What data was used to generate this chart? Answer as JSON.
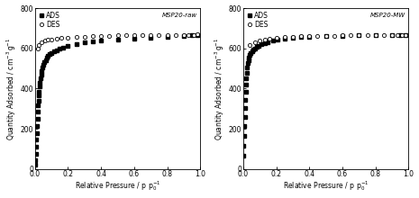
{
  "left_label": "MSP20-raw",
  "right_label": "MSP20-MW",
  "xlabel": "Relative Pressure / p $\\mathregular{p_0^{-1}}$",
  "ylabel": "Quantity Adsorbed / $\\mathregular{cm^{-3}\\,g^{-1}}$",
  "ylim": [
    0,
    800
  ],
  "xlim": [
    0.0,
    1.0
  ],
  "yticks": [
    0,
    200,
    400,
    600,
    800
  ],
  "xticks": [
    0.0,
    0.2,
    0.4,
    0.6,
    0.8,
    1.0
  ],
  "legend_ads": "ADS",
  "legend_des": "DES",
  "left_ads_x": [
    0.001,
    0.003,
    0.005,
    0.007,
    0.009,
    0.011,
    0.013,
    0.015,
    0.017,
    0.019,
    0.021,
    0.023,
    0.025,
    0.028,
    0.031,
    0.034,
    0.038,
    0.042,
    0.047,
    0.052,
    0.058,
    0.065,
    0.072,
    0.08,
    0.09,
    0.1,
    0.115,
    0.13,
    0.15,
    0.17,
    0.2,
    0.25,
    0.3,
    0.35,
    0.4,
    0.5,
    0.6,
    0.7,
    0.8,
    0.9,
    0.95,
    0.98
  ],
  "left_ads_y": [
    20,
    45,
    75,
    110,
    145,
    180,
    215,
    250,
    285,
    315,
    340,
    365,
    385,
    410,
    430,
    450,
    470,
    487,
    503,
    517,
    530,
    542,
    553,
    562,
    570,
    578,
    586,
    592,
    598,
    604,
    610,
    620,
    628,
    634,
    638,
    644,
    648,
    652,
    657,
    661,
    664,
    666
  ],
  "left_des_x": [
    0.015,
    0.025,
    0.04,
    0.06,
    0.08,
    0.1,
    0.13,
    0.16,
    0.2,
    0.25,
    0.3,
    0.35,
    0.4,
    0.45,
    0.5,
    0.55,
    0.6,
    0.65,
    0.7,
    0.75,
    0.8,
    0.85,
    0.9,
    0.93,
    0.96,
    0.98
  ],
  "left_des_y": [
    598,
    617,
    630,
    638,
    642,
    645,
    648,
    651,
    654,
    657,
    659,
    661,
    662,
    663,
    664,
    664,
    665,
    665,
    666,
    666,
    667,
    667,
    668,
    668,
    668,
    669
  ],
  "right_ads_x": [
    0.001,
    0.003,
    0.005,
    0.007,
    0.009,
    0.011,
    0.013,
    0.015,
    0.017,
    0.019,
    0.022,
    0.025,
    0.028,
    0.032,
    0.036,
    0.041,
    0.047,
    0.054,
    0.062,
    0.071,
    0.082,
    0.095,
    0.11,
    0.13,
    0.15,
    0.18,
    0.21,
    0.25,
    0.3,
    0.35,
    0.4,
    0.5,
    0.6,
    0.7,
    0.8,
    0.9,
    0.95,
    0.98
  ],
  "right_ads_y": [
    65,
    115,
    165,
    215,
    260,
    305,
    345,
    385,
    420,
    452,
    480,
    505,
    525,
    542,
    555,
    567,
    577,
    586,
    594,
    600,
    607,
    613,
    619,
    626,
    631,
    638,
    643,
    648,
    653,
    657,
    659,
    661,
    663,
    664,
    665,
    666,
    667,
    668
  ],
  "right_des_x": [
    0.04,
    0.07,
    0.1,
    0.13,
    0.16,
    0.2,
    0.25,
    0.3,
    0.35,
    0.4,
    0.45,
    0.5,
    0.55,
    0.6,
    0.65,
    0.7,
    0.75,
    0.8,
    0.85,
    0.9,
    0.93,
    0.96,
    0.98
  ],
  "right_des_y": [
    616,
    631,
    638,
    643,
    647,
    651,
    655,
    658,
    660,
    661,
    662,
    663,
    663,
    664,
    664,
    665,
    665,
    666,
    666,
    667,
    667,
    668,
    668
  ]
}
